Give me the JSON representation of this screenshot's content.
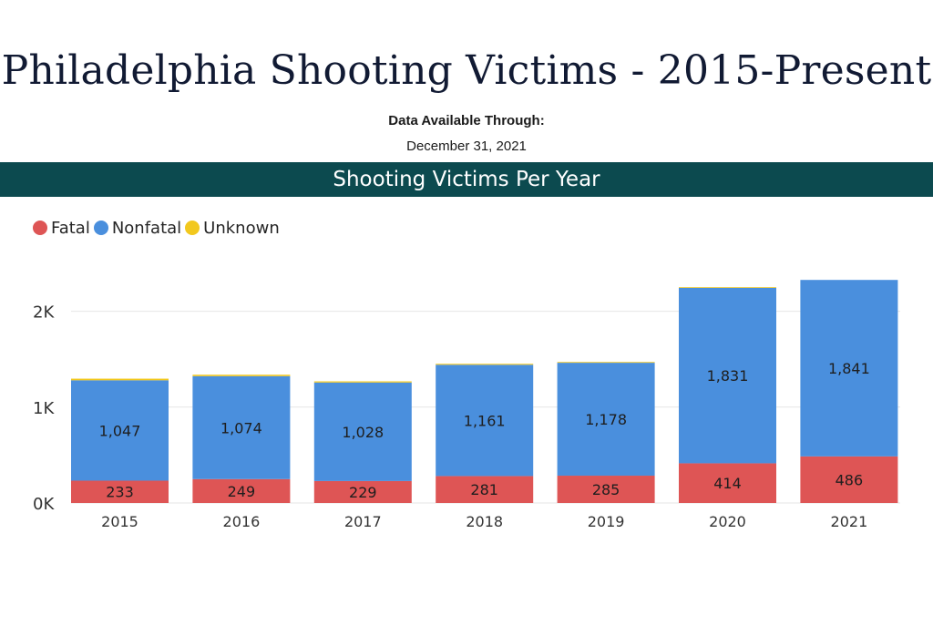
{
  "header": {
    "title": "Philadelphia Shooting Victims - 2015-Present",
    "availability_label": "Data Available Through:",
    "availability_date": "December 31, 2021"
  },
  "banner": {
    "title": "Shooting Victims Per Year"
  },
  "colors": {
    "fatal": "#de5555",
    "nonfatal": "#4a8fdd",
    "unknown": "#f2c81e",
    "banner": "#0c4a4f"
  },
  "chart_data": {
    "type": "bar",
    "stacked": true,
    "title": "Shooting Victims Per Year",
    "xlabel": "",
    "ylabel": "",
    "ylim": [
      0,
      2500
    ],
    "yticks": [
      0,
      1000,
      2000
    ],
    "ytick_labels": [
      "0K",
      "1K",
      "2K"
    ],
    "grid": true,
    "legend_position": "top-left",
    "categories": [
      "2015",
      "2016",
      "2017",
      "2018",
      "2019",
      "2020",
      "2021"
    ],
    "series": [
      {
        "name": "Fatal",
        "color": "#de5555",
        "values": [
          233,
          249,
          229,
          281,
          285,
          414,
          486
        ],
        "labels": [
          "233",
          "249",
          "229",
          "281",
          "285",
          "414",
          "486"
        ]
      },
      {
        "name": "Nonfatal",
        "color": "#4a8fdd",
        "values": [
          1047,
          1074,
          1028,
          1161,
          1178,
          1831,
          1841
        ],
        "labels": [
          "1,047",
          "1,074",
          "1,028",
          "1,161",
          "1,178",
          "1,831",
          "1,841"
        ]
      },
      {
        "name": "Unknown",
        "color": "#f2c81e",
        "values": [
          17,
          15,
          12,
          10,
          8,
          7,
          0
        ],
        "labels": [
          "",
          "",
          "",
          "",
          "",
          "",
          ""
        ]
      }
    ]
  }
}
